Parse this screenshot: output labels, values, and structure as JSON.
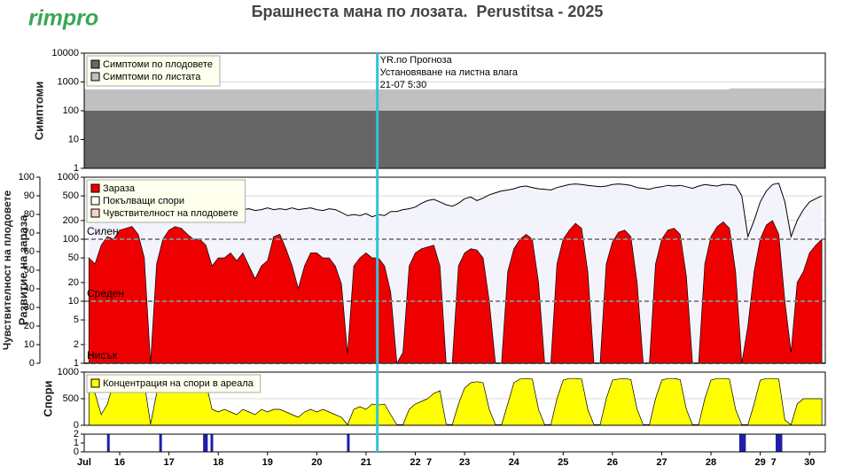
{
  "logo": "rimpro",
  "title": "Брашнеста мана по лозата.  Perustitsa - 2025",
  "annotation": {
    "x": 21.229,
    "color": "#2ec4d6",
    "lines": [
      "YR.no Прогноза",
      "Установяване на листна влага",
      "21-07 5:30"
    ]
  },
  "chart_data": [
    {
      "type": "area",
      "y_label": "Симптоми",
      "yscale": "log",
      "xlim": [
        15.28,
        30.32
      ],
      "ylim": [
        1,
        10000
      ],
      "yticks": [
        1,
        10,
        100,
        1000,
        10000
      ],
      "grid": true,
      "legend": "top-left",
      "x": [
        15.28,
        28.35,
        28.4,
        30.32
      ],
      "series": [
        {
          "name": "Симптоми по плодовете",
          "color": "#666666",
          "style": "area",
          "values": [
            100,
            100,
            100,
            100
          ]
        },
        {
          "name": "Симптоми по листата",
          "color": "#c0c0c0",
          "style": "area",
          "values": [
            550,
            550,
            600,
            600
          ]
        }
      ]
    },
    {
      "type": "area",
      "y_label": "Развитие на зараза",
      "y2_label": "Чувствителност на плодовете",
      "yscale": "log",
      "xlim": [
        15.28,
        30.32
      ],
      "ylim": [
        1,
        1000
      ],
      "yticks": [
        1,
        2,
        5,
        10,
        20,
        50,
        100,
        200,
        500,
        1000
      ],
      "y2lim": [
        0,
        100
      ],
      "y2ticks": [
        0,
        10,
        20,
        30,
        40,
        50,
        60,
        70,
        80,
        90,
        100
      ],
      "grid": true,
      "legend": "top-left",
      "levels": [
        {
          "value": 100,
          "label": "Силен"
        },
        {
          "value": 10,
          "label": "Среден"
        },
        {
          "value": 1,
          "label": "Нисък"
        }
      ],
      "x": [
        15.375,
        15.5,
        15.625,
        15.75,
        15.875,
        16,
        16.125,
        16.25,
        16.375,
        16.5,
        16.625,
        16.75,
        16.875,
        17,
        17.125,
        17.25,
        17.375,
        17.5,
        17.625,
        17.75,
        17.875,
        18,
        18.125,
        18.25,
        18.375,
        18.5,
        18.625,
        18.75,
        18.875,
        19,
        19.125,
        19.25,
        19.375,
        19.5,
        19.625,
        19.75,
        19.875,
        20,
        20.125,
        20.25,
        20.375,
        20.5,
        20.625,
        20.75,
        20.875,
        21,
        21.125,
        21.25,
        21.375,
        21.5,
        21.625,
        21.75,
        21.875,
        22,
        22.125,
        22.25,
        22.375,
        22.5,
        22.625,
        22.75,
        22.875,
        23,
        23.125,
        23.25,
        23.375,
        23.5,
        23.625,
        23.75,
        23.875,
        24,
        24.125,
        24.25,
        24.375,
        24.5,
        24.625,
        24.75,
        24.875,
        25,
        25.125,
        25.25,
        25.375,
        25.5,
        25.625,
        25.75,
        25.875,
        26,
        26.125,
        26.25,
        26.375,
        26.5,
        26.625,
        26.75,
        26.875,
        27,
        27.125,
        27.25,
        27.375,
        27.5,
        27.625,
        27.75,
        27.875,
        28,
        28.125,
        28.25,
        28.375,
        28.5,
        28.625,
        28.75,
        28.875,
        29,
        29.125,
        29.25,
        29.375,
        29.5,
        29.625,
        29.75,
        29.875,
        30,
        30.125,
        30.25
      ],
      "series": [
        {
          "name": "Зараза",
          "color": "#ee0000",
          "style": "area",
          "values": [
            50,
            40,
            80,
            110,
            100,
            140,
            150,
            160,
            120,
            50,
            1,
            40,
            100,
            140,
            160,
            150,
            120,
            100,
            100,
            80,
            37,
            50,
            50,
            60,
            45,
            60,
            37,
            23,
            37,
            45,
            110,
            120,
            70,
            37,
            16,
            37,
            60,
            60,
            50,
            50,
            37,
            19,
            1.4,
            37,
            50,
            60,
            50,
            50,
            37,
            14,
            1,
            1.5,
            37,
            60,
            70,
            75,
            80,
            37,
            1,
            1,
            37,
            60,
            70,
            67,
            50,
            10,
            1,
            1,
            30,
            70,
            100,
            120,
            100,
            20,
            1,
            1,
            40,
            100,
            140,
            180,
            150,
            30,
            1,
            1,
            40,
            90,
            130,
            140,
            110,
            20,
            1,
            1,
            40,
            100,
            140,
            150,
            120,
            25,
            1,
            1,
            40,
            110,
            160,
            190,
            150,
            30,
            1,
            4,
            30,
            100,
            170,
            200,
            120,
            10,
            1.5,
            20,
            30,
            60,
            80,
            100
          ]
        },
        {
          "name": "Покълващи спори",
          "color": "#ffffff",
          "line_color": "#000000",
          "fill": "#f3f3fb",
          "style": "line",
          "values": [
            230,
            240,
            250,
            260,
            260,
            270,
            260,
            280,
            270,
            270,
            280,
            260,
            280,
            270,
            290,
            280,
            300,
            280,
            290,
            300,
            290,
            300,
            310,
            290,
            300,
            300,
            310,
            290,
            300,
            320,
            300,
            310,
            300,
            320,
            300,
            310,
            320,
            300,
            290,
            310,
            300,
            270,
            240,
            250,
            240,
            260,
            230,
            250,
            240,
            280,
            280,
            300,
            310,
            330,
            380,
            420,
            440,
            400,
            360,
            340,
            380,
            450,
            480,
            420,
            460,
            520,
            560,
            600,
            620,
            650,
            700,
            720,
            680,
            650,
            640,
            620,
            680,
            720,
            760,
            780,
            760,
            740,
            720,
            700,
            720,
            760,
            780,
            760,
            740,
            680,
            660,
            640,
            680,
            700,
            740,
            720,
            740,
            700,
            660,
            720,
            760,
            740,
            720,
            760,
            760,
            740,
            500,
            110,
            200,
            400,
            600,
            760,
            800,
            400,
            110,
            200,
            300,
            400,
            450,
            500
          ]
        },
        {
          "name": "Чувствителност на плодовете",
          "color": "#f6d4c8",
          "style": "legend"
        }
      ]
    },
    {
      "type": "area",
      "y_label": "Спори",
      "yscale": "linear",
      "xlim": [
        15.28,
        30.32
      ],
      "ylim": [
        0,
        1000
      ],
      "yticks": [
        0,
        500,
        1000
      ],
      "grid": true,
      "legend": "top-left",
      "x": [
        15.375,
        15.5,
        15.625,
        15.75,
        15.875,
        16,
        16.125,
        16.25,
        16.375,
        16.5,
        16.625,
        16.75,
        16.875,
        17,
        17.125,
        17.25,
        17.375,
        17.5,
        17.625,
        17.75,
        17.875,
        18,
        18.125,
        18.25,
        18.375,
        18.5,
        18.625,
        18.75,
        18.875,
        19,
        19.125,
        19.25,
        19.375,
        19.5,
        19.625,
        19.75,
        19.875,
        20,
        20.125,
        20.25,
        20.375,
        20.5,
        20.625,
        20.75,
        20.875,
        21,
        21.125,
        21.25,
        21.375,
        21.5,
        21.625,
        21.75,
        21.875,
        22,
        22.125,
        22.25,
        22.375,
        22.5,
        22.625,
        22.75,
        22.875,
        23,
        23.125,
        23.25,
        23.375,
        23.5,
        23.625,
        23.75,
        23.875,
        24,
        24.125,
        24.25,
        24.375,
        24.5,
        24.625,
        24.75,
        24.875,
        25,
        25.125,
        25.25,
        25.375,
        25.5,
        25.625,
        25.75,
        25.875,
        26,
        26.125,
        26.25,
        26.375,
        26.5,
        26.625,
        26.75,
        26.875,
        27,
        27.125,
        27.25,
        27.375,
        27.5,
        27.625,
        27.75,
        27.875,
        28,
        28.125,
        28.25,
        28.375,
        28.5,
        28.625,
        28.75,
        28.875,
        29,
        29.125,
        29.25,
        29.375,
        29.5,
        29.625,
        29.75,
        29.875,
        30,
        30.125,
        30.25
      ],
      "series": [
        {
          "name": "Концентрация на спори в ареала",
          "color": "#ffff00",
          "style": "area",
          "values": [
            700,
            600,
            200,
            400,
            800,
            850,
            850,
            850,
            850,
            800,
            20,
            600,
            880,
            900,
            900,
            900,
            880,
            880,
            850,
            800,
            300,
            250,
            300,
            250,
            200,
            300,
            250,
            200,
            300,
            250,
            300,
            300,
            250,
            200,
            150,
            250,
            300,
            250,
            300,
            250,
            200,
            150,
            10,
            300,
            350,
            300,
            400,
            380,
            400,
            200,
            10,
            10,
            300,
            400,
            450,
            500,
            600,
            650,
            20,
            10,
            400,
            700,
            800,
            820,
            800,
            300,
            10,
            10,
            400,
            800,
            870,
            880,
            870,
            300,
            10,
            10,
            500,
            850,
            880,
            880,
            870,
            300,
            10,
            10,
            500,
            850,
            870,
            880,
            860,
            300,
            10,
            10,
            500,
            850,
            880,
            880,
            860,
            300,
            10,
            10,
            500,
            850,
            880,
            880,
            870,
            300,
            10,
            10,
            400,
            850,
            880,
            880,
            870,
            100,
            10,
            400,
            500,
            500,
            500,
            500
          ]
        }
      ]
    },
    {
      "type": "bar",
      "yscale": "linear",
      "xlim": [
        15.28,
        30.32
      ],
      "ylim": [
        0,
        2
      ],
      "yticks": [
        0,
        1,
        2
      ],
      "color": "#1f1fa8",
      "x": [
        15.77,
        16.83,
        17.72,
        17.76,
        17.87,
        20.64,
        28.6,
        28.64,
        28.68,
        29.34,
        29.38,
        29.42
      ],
      "values": [
        2,
        2,
        2,
        2,
        2,
        2,
        2,
        2,
        2,
        2,
        2,
        2
      ],
      "month_label": "Jul",
      "xticks": [
        16,
        17,
        18,
        19,
        20,
        21,
        22,
        23,
        24,
        25,
        26,
        27,
        28,
        29,
        30
      ],
      "markers": [
        {
          "x": 22.28,
          "label": "7"
        },
        {
          "x": 29.27,
          "label": "7"
        }
      ]
    }
  ]
}
